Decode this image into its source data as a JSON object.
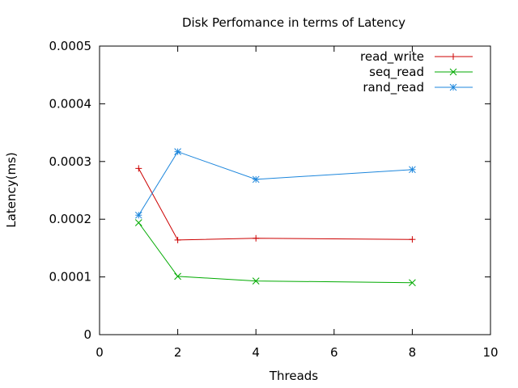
{
  "chart_data": {
    "type": "line",
    "title": "Disk Perfomance in terms of Latency",
    "xlabel": "Threads",
    "ylabel": "Latency(ms)",
    "xlim": [
      0,
      10
    ],
    "ylim": [
      0,
      0.0005
    ],
    "xticks": [
      0,
      2,
      4,
      6,
      8,
      10
    ],
    "yticks": [
      0,
      0.0001,
      0.0002,
      0.0003,
      0.0004,
      0.0005
    ],
    "xtick_labels": [
      "0",
      "2",
      "4",
      "6",
      "8",
      "10"
    ],
    "ytick_labels": [
      "0",
      "0.0001",
      "0.0002",
      "0.0003",
      "0.0004",
      "0.0005"
    ],
    "grid": false,
    "legend_position": "top-right",
    "series": [
      {
        "name": "read_write",
        "color": "#cc0000",
        "marker": "plus",
        "x": [
          1,
          2,
          4,
          8
        ],
        "y": [
          0.000288,
          0.000164,
          0.000167,
          0.000165
        ]
      },
      {
        "name": "seq_read",
        "color": "#00aa00",
        "marker": "cross",
        "x": [
          1,
          2,
          4,
          8
        ],
        "y": [
          0.000194,
          0.000101,
          9.3e-05,
          9e-05
        ]
      },
      {
        "name": "rand_read",
        "color": "#1c86dc",
        "marker": "star",
        "x": [
          1,
          2,
          4,
          8
        ],
        "y": [
          0.000207,
          0.000317,
          0.000269,
          0.000286
        ]
      }
    ]
  }
}
